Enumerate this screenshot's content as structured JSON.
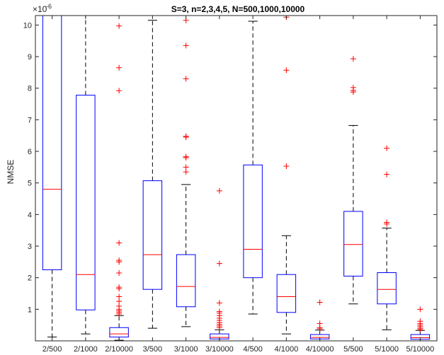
{
  "chart_data": {
    "type": "box",
    "title": "S=3, n=2,3,4,5, N=500,1000,10000",
    "xlabel": "",
    "ylabel": "NMSE",
    "y_exponent_label": "×10",
    "y_exponent_power": "-6",
    "ylim": [
      0,
      10.3
    ],
    "yticks": [
      "1",
      "2",
      "3",
      "4",
      "5",
      "6",
      "7",
      "8",
      "9",
      "10"
    ],
    "grid": false,
    "colors": {
      "box": "#0000ff",
      "median": "#ff0000",
      "outlier": "#ff0000",
      "whisker": "#000000",
      "axis": "#262626"
    },
    "categories": [
      "2/500",
      "2/1000",
      "2/10000",
      "3/500",
      "3/1000",
      "3/10000",
      "4/500",
      "4/1000",
      "4/10000",
      "5/500",
      "5/1000",
      "5/10000"
    ],
    "boxes": [
      {
        "q1": 2.25,
        "median": 4.8,
        "q3": 10.5,
        "whisker_low": 0.12,
        "whisker_high": 10.5,
        "outliers": []
      },
      {
        "q1": 0.98,
        "median": 2.1,
        "q3": 7.78,
        "whisker_low": 0.22,
        "whisker_high": 10.5,
        "outliers": []
      },
      {
        "q1": 0.12,
        "median": 0.22,
        "q3": 0.42,
        "whisker_low": 0.02,
        "whisker_high": 0.8,
        "outliers": [
          9.97,
          8.65,
          7.92,
          3.1,
          2.55,
          2.5,
          2.15,
          1.7,
          1.65,
          1.4,
          1.25,
          1.1,
          1.0,
          0.95,
          0.9,
          0.85
        ]
      },
      {
        "q1": 1.63,
        "median": 2.73,
        "q3": 5.07,
        "whisker_low": 0.4,
        "whisker_high": 10.15,
        "outliers": []
      },
      {
        "q1": 1.08,
        "median": 1.72,
        "q3": 2.73,
        "whisker_low": 0.45,
        "whisker_high": 4.95,
        "outliers": [
          10.15,
          9.35,
          8.3,
          6.48,
          6.45,
          5.83,
          5.8,
          5.5,
          5.35
        ]
      },
      {
        "q1": 0.06,
        "median": 0.11,
        "q3": 0.22,
        "whisker_low": 0.0,
        "whisker_high": 0.35,
        "outliers": [
          4.75,
          2.45,
          1.2,
          0.93,
          0.88,
          0.8,
          0.72,
          0.65,
          0.58,
          0.52,
          0.47,
          0.42
        ]
      },
      {
        "q1": 2.0,
        "median": 2.9,
        "q3": 5.57,
        "whisker_low": 0.85,
        "whisker_high": 10.12,
        "outliers": []
      },
      {
        "q1": 0.9,
        "median": 1.4,
        "q3": 2.1,
        "whisker_low": 0.22,
        "whisker_high": 3.33,
        "outliers": [
          10.25,
          8.57,
          5.53
        ]
      },
      {
        "q1": 0.06,
        "median": 0.11,
        "q3": 0.2,
        "whisker_low": 0.0,
        "whisker_high": 0.34,
        "outliers": [
          1.22,
          0.55,
          0.42,
          0.38
        ]
      },
      {
        "q1": 2.05,
        "median": 3.05,
        "q3": 4.1,
        "whisker_low": 1.17,
        "whisker_high": 6.82,
        "outliers": [
          8.93,
          8.02,
          7.93,
          7.88
        ]
      },
      {
        "q1": 1.17,
        "median": 1.63,
        "q3": 2.16,
        "whisker_low": 0.35,
        "whisker_high": 3.57,
        "outliers": [
          6.1,
          5.27,
          3.75,
          3.7
        ]
      },
      {
        "q1": 0.05,
        "median": 0.1,
        "q3": 0.2,
        "whisker_low": 0.0,
        "whisker_high": 0.33,
        "outliers": [
          1.0,
          0.62,
          0.55,
          0.5,
          0.45,
          0.4,
          0.36
        ]
      }
    ]
  }
}
